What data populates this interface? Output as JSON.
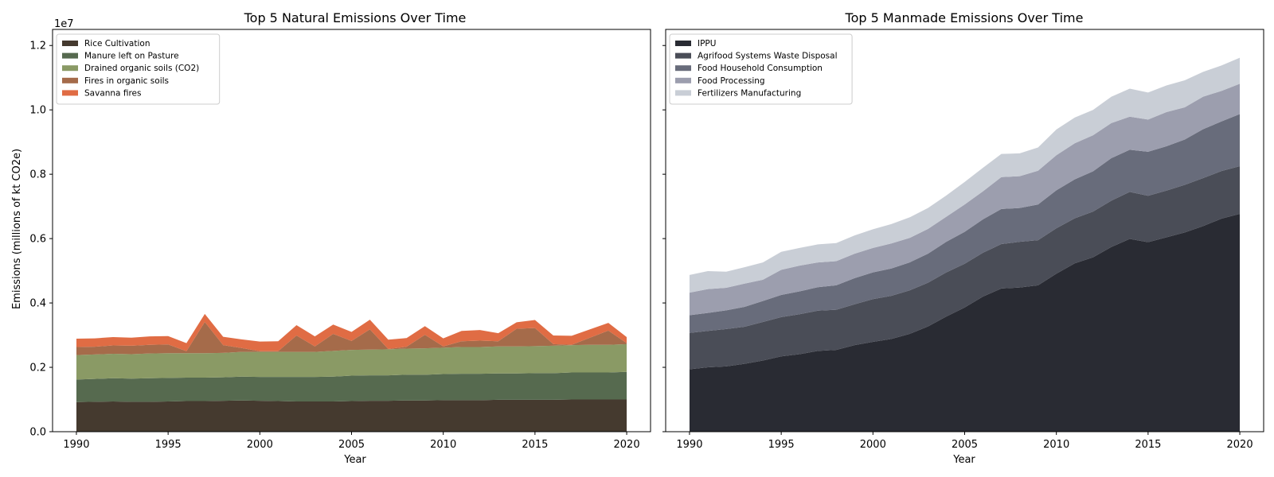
{
  "colors": {
    "natural": [
      "#453a2f",
      "#566a4f",
      "#8a9a65",
      "#a56b4a",
      "#e06c44"
    ],
    "manmade": [
      "#292b33",
      "#4a4d57",
      "#686c7b",
      "#9c9eae",
      "#c9ced6"
    ]
  },
  "shared": {
    "ylabel": "Emissions (millions of kt CO2e)",
    "offset": "1e7",
    "yticks": [
      "0.0",
      "0.2",
      "0.4",
      "0.6",
      "0.8",
      "1.0",
      "1.2"
    ],
    "xlabel": "Year"
  },
  "chart_data": [
    {
      "type": "area",
      "stacked": true,
      "title": "Top 5 Natural Emissions Over Time",
      "xlabel": "Year",
      "ylabel": "Emissions (millions of kt CO2e)",
      "ylim": [
        0,
        12500000
      ],
      "xlim": [
        1988.7,
        2021.3
      ],
      "xticks": [
        1990,
        1995,
        2000,
        2005,
        2010,
        2015,
        2020
      ],
      "legend_position": "top-left",
      "x": [
        1990,
        1991,
        1992,
        1993,
        1994,
        1995,
        1996,
        1997,
        1998,
        1999,
        2000,
        2001,
        2002,
        2003,
        2004,
        2005,
        2006,
        2007,
        2008,
        2009,
        2010,
        2011,
        2012,
        2013,
        2014,
        2015,
        2016,
        2017,
        2018,
        2019,
        2020
      ],
      "series": [
        {
          "name": "Rice Cultivation",
          "values": [
            920000,
            930000,
            940000,
            930000,
            930000,
            940000,
            950000,
            950000,
            960000,
            970000,
            960000,
            950000,
            940000,
            940000,
            940000,
            950000,
            960000,
            960000,
            970000,
            970000,
            980000,
            980000,
            980000,
            990000,
            990000,
            990000,
            990000,
            1000000,
            1000000,
            1000000,
            1000000
          ]
        },
        {
          "name": "Manure left on Pasture",
          "values": [
            700000,
            710000,
            720000,
            720000,
            730000,
            730000,
            730000,
            730000,
            730000,
            740000,
            740000,
            750000,
            760000,
            760000,
            770000,
            790000,
            790000,
            790000,
            800000,
            800000,
            810000,
            820000,
            820000,
            820000,
            820000,
            830000,
            830000,
            840000,
            840000,
            840000,
            860000
          ]
        },
        {
          "name": "Drained organic soils (CO2)",
          "values": [
            760000,
            760000,
            760000,
            760000,
            770000,
            770000,
            760000,
            760000,
            760000,
            770000,
            780000,
            780000,
            780000,
            780000,
            800000,
            800000,
            800000,
            810000,
            810000,
            820000,
            820000,
            830000,
            830000,
            840000,
            840000,
            840000,
            850000,
            850000,
            860000,
            860000,
            860000
          ]
        },
        {
          "name": "Fires in organic soils",
          "values": [
            250000,
            240000,
            260000,
            260000,
            270000,
            270000,
            60000,
            970000,
            240000,
            120000,
            20000,
            20000,
            510000,
            170000,
            530000,
            280000,
            630000,
            10000,
            60000,
            420000,
            40000,
            180000,
            200000,
            160000,
            550000,
            560000,
            50000,
            10000,
            220000,
            440000,
            30000
          ]
        },
        {
          "name": "Savanna fires",
          "values": [
            260000,
            260000,
            260000,
            250000,
            260000,
            260000,
            250000,
            250000,
            260000,
            270000,
            300000,
            310000,
            320000,
            310000,
            290000,
            280000,
            300000,
            290000,
            270000,
            270000,
            250000,
            320000,
            330000,
            250000,
            200000,
            250000,
            270000,
            280000,
            260000,
            240000,
            190000
          ]
        }
      ]
    },
    {
      "type": "area",
      "stacked": true,
      "title": "Top 5 Manmade Emissions Over Time",
      "xlabel": "Year",
      "ylabel": "",
      "ylim": [
        0,
        12500000
      ],
      "xlim": [
        1988.7,
        2021.3
      ],
      "xticks": [
        1990,
        1995,
        2000,
        2005,
        2010,
        2015,
        2020
      ],
      "legend_position": "top-left",
      "x": [
        1990,
        1991,
        1992,
        1993,
        1994,
        1995,
        1996,
        1997,
        1998,
        1999,
        2000,
        2001,
        2002,
        2003,
        2004,
        2005,
        2006,
        2007,
        2008,
        2009,
        2010,
        2011,
        2012,
        2013,
        2014,
        2015,
        2016,
        2017,
        2018,
        2019,
        2020
      ],
      "series": [
        {
          "name": "IPPU",
          "values": [
            1940000,
            2000000,
            2030000,
            2110000,
            2210000,
            2340000,
            2410000,
            2510000,
            2540000,
            2690000,
            2790000,
            2880000,
            3040000,
            3270000,
            3580000,
            3860000,
            4200000,
            4450000,
            4480000,
            4550000,
            4910000,
            5230000,
            5420000,
            5740000,
            5990000,
            5890000,
            6040000,
            6190000,
            6390000,
            6620000,
            6770000
          ]
        },
        {
          "name": "Agrifood Systems Waste Disposal",
          "values": [
            1130000,
            1130000,
            1160000,
            1150000,
            1200000,
            1220000,
            1240000,
            1250000,
            1250000,
            1270000,
            1330000,
            1340000,
            1350000,
            1360000,
            1370000,
            1360000,
            1360000,
            1380000,
            1420000,
            1400000,
            1410000,
            1400000,
            1420000,
            1440000,
            1460000,
            1440000,
            1450000,
            1480000,
            1490000,
            1480000,
            1480000
          ]
        },
        {
          "name": "Food Household Consumption",
          "values": [
            550000,
            560000,
            580000,
            620000,
            650000,
            690000,
            710000,
            730000,
            760000,
            810000,
            830000,
            850000,
            870000,
            900000,
            950000,
            990000,
            1040000,
            1090000,
            1050000,
            1110000,
            1180000,
            1210000,
            1250000,
            1320000,
            1310000,
            1370000,
            1380000,
            1410000,
            1520000,
            1540000,
            1620000
          ]
        },
        {
          "name": "Food Processing",
          "values": [
            700000,
            740000,
            700000,
            720000,
            660000,
            780000,
            800000,
            770000,
            750000,
            760000,
            760000,
            780000,
            760000,
            770000,
            780000,
            850000,
            870000,
            990000,
            990000,
            1050000,
            1090000,
            1120000,
            1120000,
            1090000,
            1030000,
            1000000,
            1060000,
            1000000,
            1010000,
            950000,
            940000
          ]
        },
        {
          "name": "Fertilizers Manufacturing",
          "values": [
            550000,
            560000,
            500000,
            510000,
            540000,
            560000,
            550000,
            560000,
            560000,
            570000,
            580000,
            600000,
            640000,
            650000,
            660000,
            700000,
            730000,
            720000,
            710000,
            720000,
            800000,
            800000,
            790000,
            820000,
            870000,
            840000,
            830000,
            840000,
            770000,
            790000,
            810000
          ]
        }
      ]
    }
  ]
}
